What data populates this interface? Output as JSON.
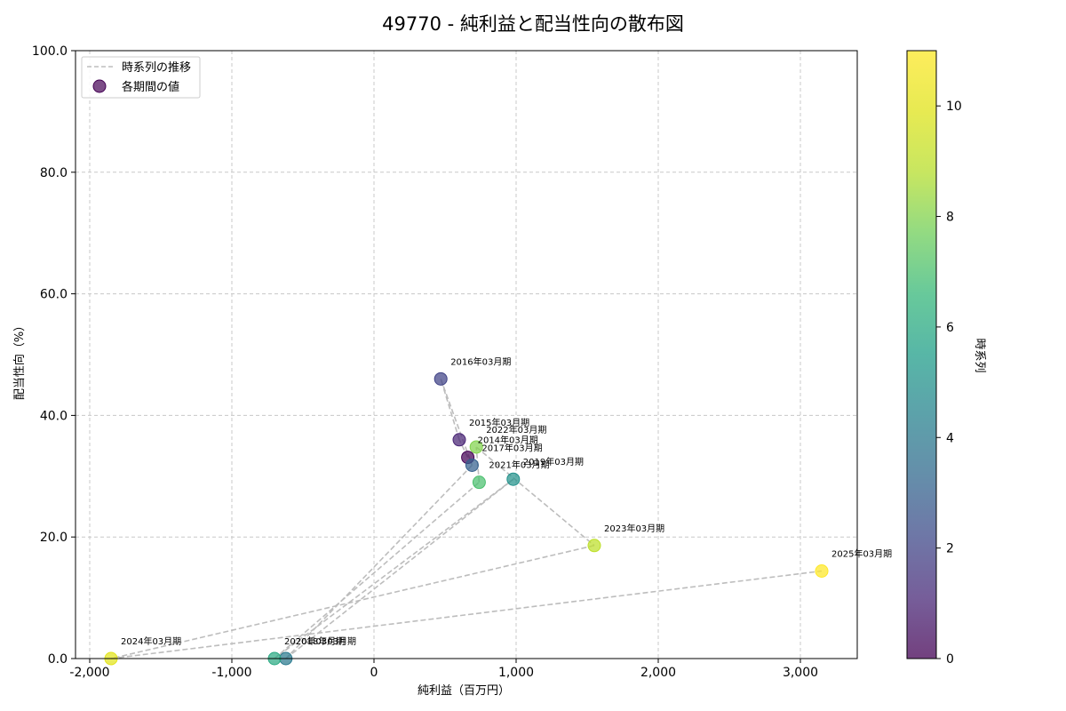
{
  "chart_data": {
    "type": "scatter",
    "title": "49770 - 純利益と配当性向の散布図",
    "xlabel": "純利益（百万円）",
    "ylabel": "配当性向（%）",
    "xlim": [
      -2100,
      3400
    ],
    "ylim": [
      0,
      100
    ],
    "x_ticks": [
      -2000,
      -1000,
      0,
      1000,
      2000,
      3000
    ],
    "x_tick_labels": [
      "-2,000",
      "-1,000",
      "0",
      "1,000",
      "2,000",
      "3,000"
    ],
    "y_ticks": [
      0,
      20,
      40,
      60,
      80,
      100
    ],
    "y_tick_labels": [
      "0.0",
      "20.0",
      "40.0",
      "60.0",
      "80.0",
      "100.0"
    ],
    "grid": true,
    "legend": {
      "position": "top-left",
      "entries": [
        {
          "label": "時系列の推移",
          "kind": "line"
        },
        {
          "label": "各期間の値",
          "kind": "marker"
        }
      ]
    },
    "colorbar": {
      "label": "時系列",
      "min": 0,
      "max": 11,
      "ticks": [
        0,
        2,
        4,
        6,
        8,
        10
      ],
      "tick_labels": [
        "0",
        "2",
        "4",
        "6",
        "8",
        "10"
      ],
      "colormap": "viridis"
    },
    "points": [
      {
        "period": "2014年03月期",
        "x": 660,
        "y": 33.1,
        "t": 0
      },
      {
        "period": "2015年03月期",
        "x": 600,
        "y": 36.0,
        "t": 1
      },
      {
        "period": "2016年03月期",
        "x": 470,
        "y": 46.0,
        "t": 2
      },
      {
        "period": "2017年03月期",
        "x": 690,
        "y": 31.8,
        "t": 3
      },
      {
        "period": "2018年03月期",
        "x": -620,
        "y": 0.0,
        "t": 4
      },
      {
        "period": "2019年03月期",
        "x": 980,
        "y": 29.5,
        "t": 5
      },
      {
        "period": "2020年03月期",
        "x": -700,
        "y": 0.0,
        "t": 6
      },
      {
        "period": "2021年03月期",
        "x": 740,
        "y": 29.0,
        "t": 7
      },
      {
        "period": "2022年03月期",
        "x": 720,
        "y": 34.8,
        "t": 8
      },
      {
        "period": "2023年03月期",
        "x": 1550,
        "y": 18.6,
        "t": 9
      },
      {
        "period": "2024年03月期",
        "x": -1850,
        "y": 0.0,
        "t": 10
      },
      {
        "period": "2025年03月期",
        "x": 3150,
        "y": 14.4,
        "t": 11
      }
    ]
  }
}
